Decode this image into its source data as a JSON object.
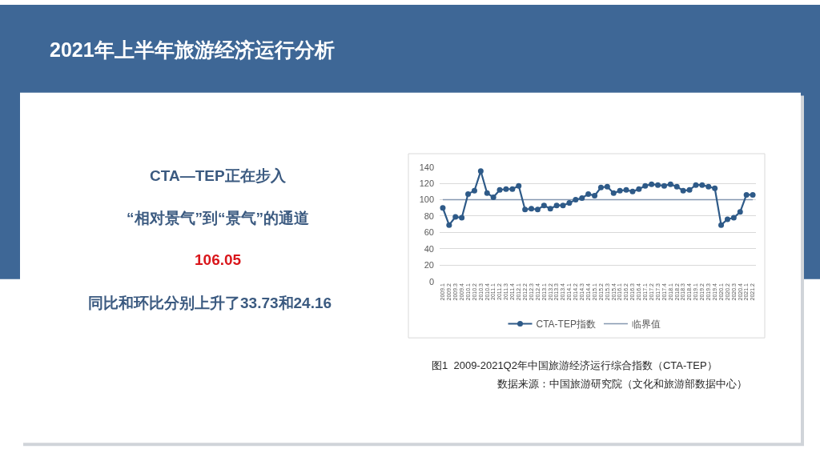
{
  "chart_data": {
    "type": "line",
    "title": "2021年上半年旅游经济运行分析",
    "categories": [
      "2009.1",
      "2009.2",
      "2009.3",
      "2009.4",
      "2010.1",
      "2010.2",
      "2010.3",
      "2010.4",
      "2011.1",
      "2011.2",
      "2011.3",
      "2011.4",
      "2012.1",
      "2012.2",
      "2012.3",
      "2012.4",
      "2013.1",
      "2013.2",
      "2013.3",
      "2013.4",
      "2014.1",
      "2014.2",
      "2014.3",
      "2014.4",
      "2015.1",
      "2015.2",
      "2015.3",
      "2015.4",
      "2016.1",
      "2016.2",
      "2016.3",
      "2016.4",
      "2017.1",
      "2017.2",
      "2017.3",
      "2017.4",
      "2018.1",
      "2018.2",
      "2018.3",
      "2018.4",
      "2019.1",
      "2019.2",
      "2019.3",
      "2019.4",
      "2020.1",
      "2020.2",
      "2020.3",
      "2020.4",
      "2021.1",
      "2021.2"
    ],
    "series": [
      {
        "name": "CTA-TEP指数",
        "color": "#2e5a88",
        "marker": "circle",
        "values": [
          90,
          69,
          79,
          78,
          107,
          111,
          135,
          108,
          103,
          112,
          113,
          113,
          117,
          88,
          89,
          88,
          93,
          89,
          93,
          93,
          96,
          100,
          102,
          107,
          105,
          115,
          116,
          108,
          111,
          112,
          110,
          113,
          117,
          119,
          118,
          117,
          119,
          116,
          111,
          112,
          118,
          118,
          116,
          114,
          69,
          76,
          78,
          85,
          106,
          106
        ]
      },
      {
        "name": "临界值",
        "color": "#8497b0",
        "marker": "none",
        "values": [
          100,
          100,
          100,
          100,
          100,
          100,
          100,
          100,
          100,
          100,
          100,
          100,
          100,
          100,
          100,
          100,
          100,
          100,
          100,
          100,
          100,
          100,
          100,
          100,
          100,
          100,
          100,
          100,
          100,
          100,
          100,
          100,
          100,
          100,
          100,
          100,
          100,
          100,
          100,
          100,
          100,
          100,
          100,
          100,
          100,
          100,
          100,
          100,
          100,
          100
        ]
      }
    ],
    "ylim": [
      0,
      140
    ],
    "yticks": [
      0,
      20,
      40,
      60,
      80,
      100,
      120,
      140
    ],
    "grid": "y",
    "legend": "bottom",
    "annotations": [
      "CTA—TEP正在步入",
      "“相对景气”到“景气”的通道",
      "106.05",
      "同比和环比分别上升了33.73和24.16",
      "图1  2009-2021Q2年中国旅游经济运行综合指数（CTA-TEP）",
      "数据来源：中国旅游研究院（文化和旅游部数据中心）"
    ]
  }
}
